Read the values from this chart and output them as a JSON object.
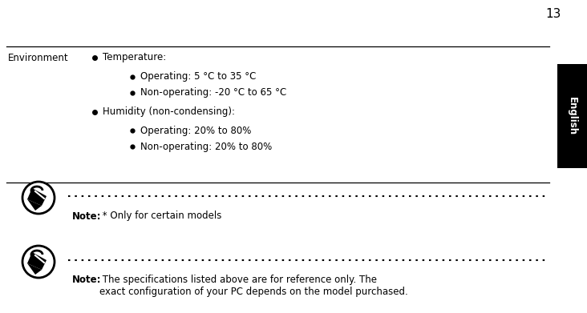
{
  "page_number": "13",
  "bg_color": "#ffffff",
  "text_color": "#000000",
  "line_color": "#000000",
  "tab_label": "English",
  "tab_bg": "#000000",
  "tab_fg": "#ffffff",
  "env_label_text": "Environment",
  "bullet1_text": "Temperature:",
  "bullet2_text": "Operating: 5 °C to 35 °C",
  "bullet3_text": "Non-operating: -20 °C to 65 °C",
  "bullet4_text": "Humidity (non-condensing):",
  "bullet5_text": "Operating: 20% to 80%",
  "bullet6_text": "Non-operating: 20% to 80%",
  "note1_bold": "Note:",
  "note1_rest": " * Only for certain models",
  "note2_bold": "Note:",
  "note2_rest": " The specifications listed above are for reference only. The\nexact configuration of your PC depends on the model purchased."
}
